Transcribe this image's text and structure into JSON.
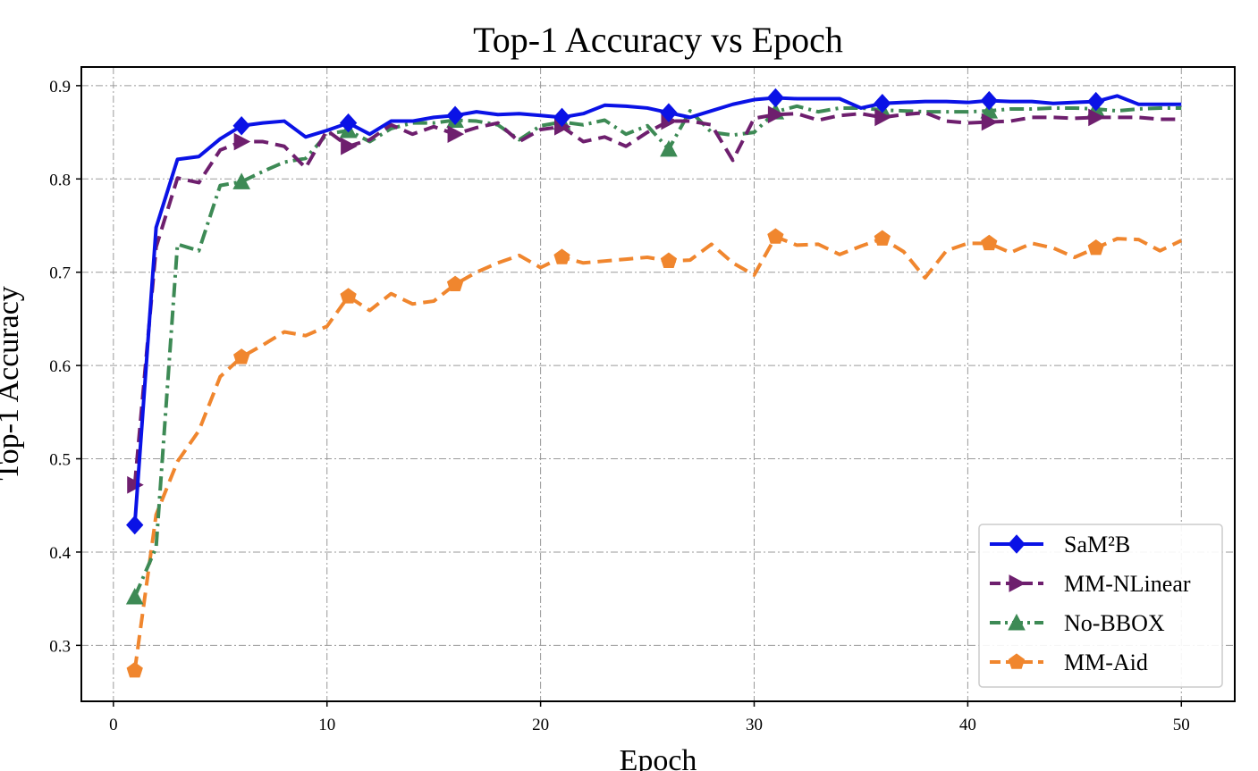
{
  "chart_data": {
    "type": "line",
    "title": "Top-1 Accuracy vs Epoch",
    "xlabel": "Epoch",
    "ylabel": "Top-1 Accuracy",
    "xlim": [
      -1.5,
      52.5
    ],
    "ylim": [
      0.24,
      0.92
    ],
    "xticks": [
      0,
      10,
      20,
      30,
      40,
      50
    ],
    "yticks": [
      0.3,
      0.4,
      0.5,
      0.6,
      0.7,
      0.8,
      0.9
    ],
    "grid": true,
    "legend": {
      "position": "lower-right"
    },
    "x": [
      1,
      2,
      3,
      4,
      5,
      6,
      7,
      8,
      9,
      10,
      11,
      12,
      13,
      14,
      15,
      16,
      17,
      18,
      19,
      20,
      21,
      22,
      23,
      24,
      25,
      26,
      27,
      28,
      29,
      30,
      31,
      32,
      33,
      34,
      35,
      36,
      37,
      38,
      39,
      40,
      41,
      42,
      43,
      44,
      45,
      46,
      47,
      48,
      49,
      50
    ],
    "series": [
      {
        "name": "SaM²B",
        "color": "#0a12e6",
        "line_style": "solid",
        "marker": "diamond",
        "marker_every": 5,
        "values": [
          0.429,
          0.748,
          0.821,
          0.824,
          0.843,
          0.857,
          0.86,
          0.862,
          0.845,
          0.852,
          0.86,
          0.848,
          0.862,
          0.862,
          0.866,
          0.868,
          0.872,
          0.869,
          0.87,
          0.868,
          0.866,
          0.87,
          0.879,
          0.878,
          0.876,
          0.871,
          0.866,
          0.873,
          0.88,
          0.885,
          0.887,
          0.886,
          0.886,
          0.886,
          0.876,
          0.881,
          0.882,
          0.883,
          0.883,
          0.882,
          0.884,
          0.883,
          0.883,
          0.881,
          0.882,
          0.883,
          0.889,
          0.88,
          0.88,
          0.88
        ]
      },
      {
        "name": "MM-NLinear",
        "color": "#6e1f6e",
        "line_style": "dashed",
        "marker": "triangle-right",
        "marker_every": 5,
        "values": [
          0.472,
          0.727,
          0.801,
          0.796,
          0.831,
          0.84,
          0.84,
          0.835,
          0.812,
          0.852,
          0.835,
          0.842,
          0.858,
          0.848,
          0.856,
          0.848,
          0.855,
          0.86,
          0.84,
          0.853,
          0.856,
          0.84,
          0.845,
          0.835,
          0.85,
          0.862,
          0.862,
          0.858,
          0.82,
          0.865,
          0.869,
          0.87,
          0.863,
          0.868,
          0.87,
          0.866,
          0.869,
          0.871,
          0.862,
          0.86,
          0.861,
          0.862,
          0.866,
          0.866,
          0.865,
          0.866,
          0.866,
          0.866,
          0.864,
          0.864
        ]
      },
      {
        "name": "No-BBOX",
        "color": "#3d8a55",
        "line_style": "dashdot",
        "marker": "triangle-up",
        "marker_every": 5,
        "values": [
          0.352,
          0.405,
          0.73,
          0.723,
          0.793,
          0.797,
          0.808,
          0.818,
          0.822,
          0.848,
          0.852,
          0.84,
          0.854,
          0.86,
          0.86,
          0.863,
          0.862,
          0.858,
          0.842,
          0.857,
          0.861,
          0.858,
          0.863,
          0.848,
          0.857,
          0.832,
          0.873,
          0.85,
          0.847,
          0.85,
          0.872,
          0.878,
          0.872,
          0.876,
          0.876,
          0.874,
          0.873,
          0.872,
          0.872,
          0.872,
          0.873,
          0.875,
          0.875,
          0.876,
          0.876,
          0.875,
          0.873,
          0.875,
          0.876,
          0.876
        ]
      },
      {
        "name": "MM-Aid",
        "color": "#f0862e",
        "line_style": "dashed",
        "marker": "pentagon",
        "marker_every": 5,
        "values": [
          0.273,
          0.44,
          0.497,
          0.53,
          0.588,
          0.609,
          0.622,
          0.636,
          0.632,
          0.642,
          0.674,
          0.659,
          0.677,
          0.666,
          0.669,
          0.687,
          0.7,
          0.71,
          0.718,
          0.705,
          0.716,
          0.71,
          0.712,
          0.714,
          0.716,
          0.712,
          0.713,
          0.73,
          0.71,
          0.697,
          0.738,
          0.729,
          0.73,
          0.719,
          0.728,
          0.736,
          0.722,
          0.694,
          0.723,
          0.731,
          0.731,
          0.721,
          0.731,
          0.726,
          0.716,
          0.726,
          0.736,
          0.735,
          0.723,
          0.734
        ]
      }
    ]
  }
}
